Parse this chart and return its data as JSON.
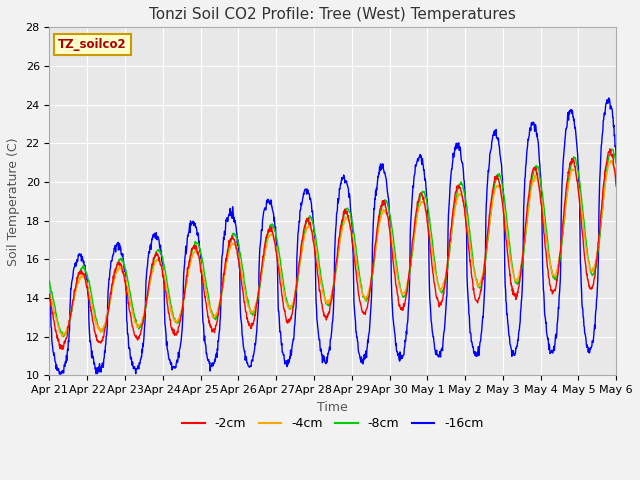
{
  "title": "Tonzi Soil CO2 Profile: Tree (West) Temperatures",
  "xlabel": "Time",
  "ylabel": "Soil Temperature (C)",
  "ylim": [
    10,
    28
  ],
  "legend_label": "TZ_soilco2",
  "series_labels": [
    "-2cm",
    "-4cm",
    "-8cm",
    "-16cm"
  ],
  "series_colors": [
    "#ff0000",
    "#ffa500",
    "#00cc00",
    "#0000ff"
  ],
  "xtick_labels": [
    "Apr 21",
    "Apr 22",
    "Apr 23",
    "Apr 24",
    "Apr 25",
    "Apr 26",
    "Apr 27",
    "Apr 28",
    "Apr 29",
    "Apr 30",
    "May 1",
    "May 2",
    "May 3",
    "May 4",
    "May 5",
    "May 6"
  ],
  "background_color": "#e8e8e8",
  "plot_bg_color": "#e8e8e8",
  "fig_bg_color": "#f2f2f2",
  "grid_color": "#ffffff",
  "title_fontsize": 11,
  "label_fontsize": 9,
  "tick_fontsize": 8
}
